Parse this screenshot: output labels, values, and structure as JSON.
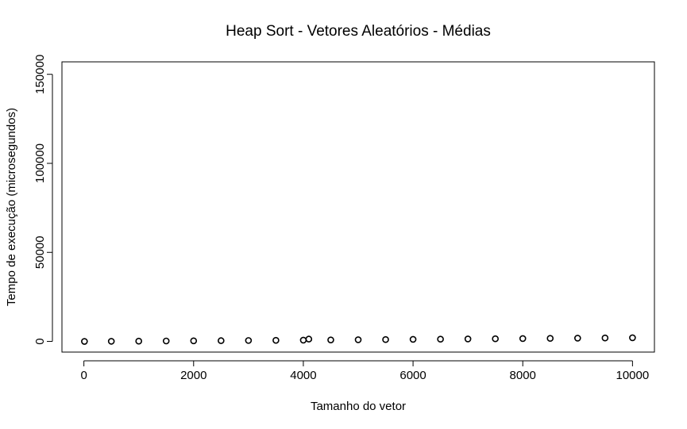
{
  "chart_data": {
    "type": "scatter",
    "title": "Heap Sort - Vetores Aleatórios - Médias",
    "xlabel": "Tamanho do vetor",
    "ylabel": "Tempo de execução (microsegundos)",
    "xlim": [
      -400,
      10400
    ],
    "ylim": [
      -6000,
      157000
    ],
    "x_ticks": [
      0,
      2000,
      4000,
      6000,
      8000,
      10000
    ],
    "y_ticks": [
      0,
      50000,
      100000,
      150000
    ],
    "x_tick_labels": [
      "0",
      "2000",
      "4000",
      "6000",
      "8000",
      "10000"
    ],
    "y_tick_labels": [
      "0",
      "50000",
      "100000",
      "150000"
    ],
    "grid": false,
    "legend": "none",
    "marker": "open-circle",
    "color": "#000000",
    "series": [
      {
        "x": [
          10,
          500,
          1000,
          1500,
          2000,
          2500,
          3000,
          3500,
          4000,
          4100,
          4500,
          5000,
          5500,
          6000,
          6500,
          7000,
          7500,
          8000,
          8500,
          9000,
          9500,
          10000
        ],
        "y": [
          0,
          60,
          140,
          230,
          320,
          410,
          510,
          610,
          710,
          1300,
          830,
          930,
          1040,
          1150,
          1260,
          1380,
          1480,
          1590,
          1700,
          1820,
          1930,
          2050
        ]
      }
    ]
  }
}
